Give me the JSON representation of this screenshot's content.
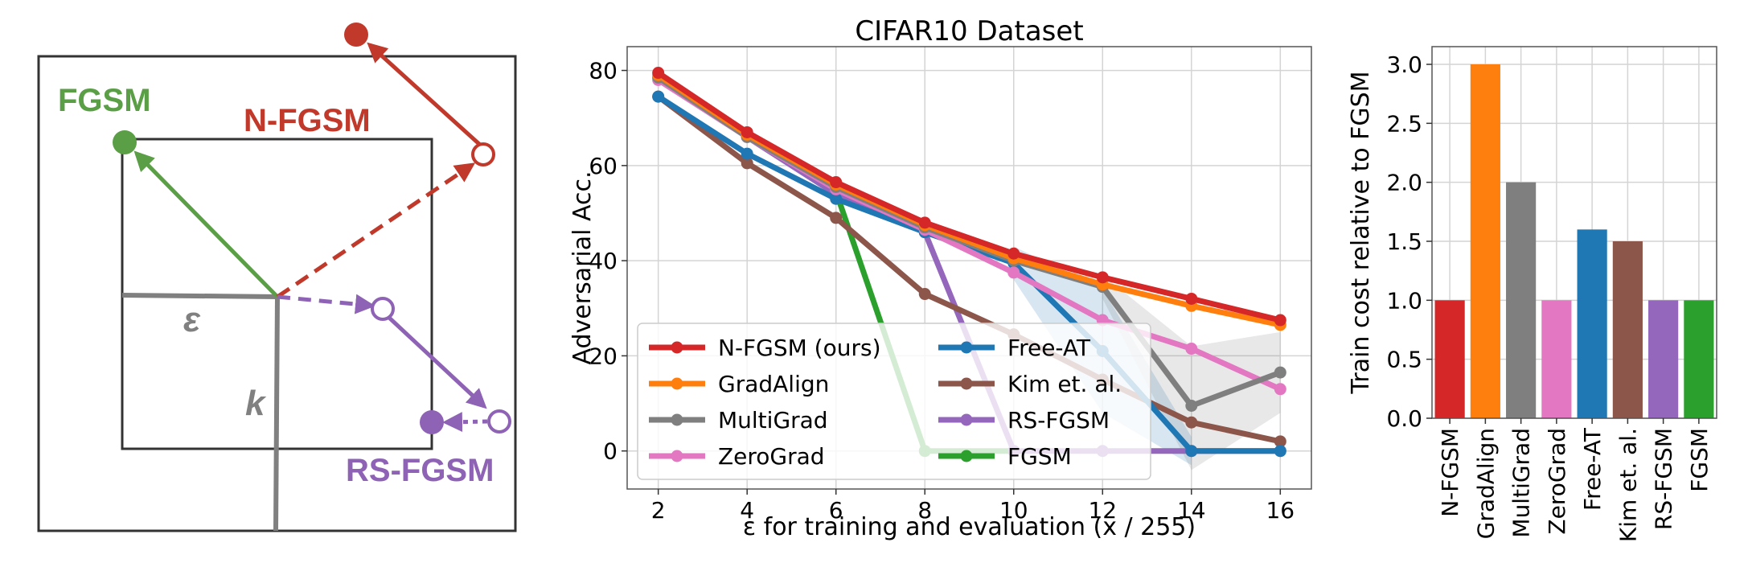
{
  "diagram": {
    "labels": {
      "fgsm": "FGSM",
      "nfgsm": "N-FGSM",
      "rsfgsm": "RS-FGSM",
      "epsilon": "ε",
      "k": "k"
    },
    "colors": {
      "fgsm": "#5a9e46",
      "nfgsm": "#c0392b",
      "rsfgsm": "#8e63b5",
      "grey": "#808080",
      "box": "#333333"
    }
  },
  "chart_data": [
    {
      "type": "line",
      "title": "CIFAR10 Dataset",
      "xlabel": "ε for training and evaluation (x / 255)",
      "ylabel": "Adversarial Acc.",
      "xlim": [
        1.3,
        16.7
      ],
      "ylim": [
        -8,
        85
      ],
      "xticks": [
        2,
        4,
        6,
        8,
        10,
        12,
        14,
        16
      ],
      "yticks": [
        0,
        20,
        40,
        60,
        80
      ],
      "grid": true,
      "legend_position": "lower-left",
      "x": [
        2,
        4,
        6,
        8,
        10,
        12,
        14,
        16
      ],
      "series": [
        {
          "name": "N-FGSM (ours)",
          "color": "#d62728",
          "values": [
            79.5,
            67.0,
            56.5,
            48.0,
            41.5,
            36.5,
            32.0,
            27.5
          ]
        },
        {
          "name": "GradAlign",
          "color": "#ff7f0e",
          "values": [
            79.0,
            66.5,
            56.0,
            47.5,
            40.5,
            35.0,
            30.5,
            26.5
          ]
        },
        {
          "name": "MultiGrad",
          "color": "#7f7f7f",
          "values": [
            78.5,
            66.0,
            55.5,
            47.0,
            40.0,
            34.5,
            9.5,
            16.5
          ]
        },
        {
          "name": "ZeroGrad",
          "color": "#e377c2",
          "values": [
            78.0,
            66.0,
            55.0,
            46.5,
            37.5,
            27.5,
            21.5,
            13.0
          ]
        },
        {
          "name": "Free-AT",
          "color": "#1f77b4",
          "values": [
            74.5,
            62.5,
            53.0,
            46.0,
            39.5,
            21.0,
            0.0,
            0.0
          ]
        },
        {
          "name": "Kim et. al.",
          "color": "#8c564b",
          "values": [
            74.5,
            60.5,
            49.0,
            33.0,
            24.5,
            15.0,
            6.0,
            2.0
          ]
        },
        {
          "name": "RS-FGSM",
          "color": "#9467bd",
          "values": [
            78.5,
            66.0,
            54.0,
            46.0,
            0.0,
            0.0,
            0.0,
            0.0
          ]
        },
        {
          "name": "FGSM",
          "color": "#2ca02c",
          "values": [
            null,
            null,
            54.5,
            0.0,
            0.0,
            null,
            null,
            null
          ]
        }
      ],
      "bands": [
        {
          "series": "Free-AT",
          "color": "#1f77b4",
          "x": [
            10,
            12,
            14
          ],
          "lower": [
            36,
            8,
            -3
          ],
          "upper": [
            43,
            34,
            3
          ]
        },
        {
          "series": "MultiGrad",
          "color": "#7f7f7f",
          "x": [
            12,
            14,
            16
          ],
          "lower": [
            32,
            -4,
            8
          ],
          "upper": [
            37,
            22,
            25
          ]
        }
      ]
    },
    {
      "type": "bar",
      "ylabel": "Train cost relative to FGSM",
      "ylim": [
        0,
        3.15
      ],
      "yticks": [
        "0.0",
        "0.5",
        "1.0",
        "1.5",
        "2.0",
        "2.5",
        "3.0"
      ],
      "grid": true,
      "categories": [
        "N-FGSM",
        "GradAlign",
        "MultiGrad",
        "ZeroGrad",
        "Free-AT",
        "Kim et. al.",
        "RS-FGSM",
        "FGSM"
      ],
      "values": [
        1.0,
        3.0,
        2.0,
        1.0,
        1.6,
        1.5,
        1.0,
        1.0
      ],
      "colors": [
        "#d62728",
        "#ff7f0e",
        "#7f7f7f",
        "#e377c2",
        "#1f77b4",
        "#8c564b",
        "#9467bd",
        "#2ca02c"
      ]
    }
  ]
}
